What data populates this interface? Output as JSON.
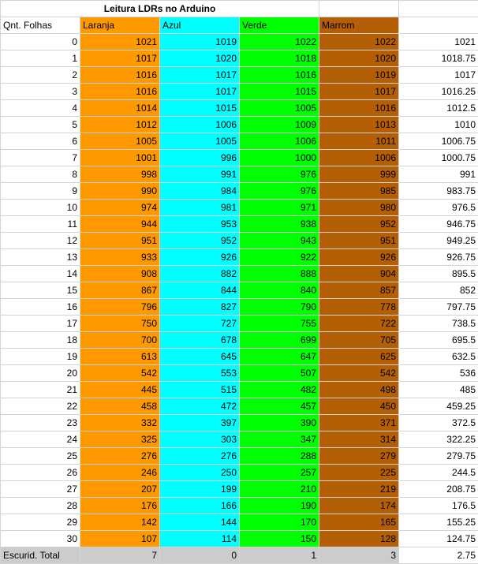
{
  "title": "Leitura LDRs no Arduino",
  "headers": {
    "rowlabel": "Qnt. Folhas",
    "laranja": "Laranja",
    "azul": "Azul",
    "verde": "Verde",
    "marrom": "Marrom"
  },
  "colors": {
    "laranja": "#ff9900",
    "azul": "#00ffff",
    "verde": "#00ff00",
    "marrom": "#b45f06",
    "total_row": "#cccccc"
  },
  "rows": [
    {
      "n": "0",
      "laranja": "1021",
      "azul": "1019",
      "verde": "1022",
      "marrom": "1022",
      "media": "1021"
    },
    {
      "n": "1",
      "laranja": "1017",
      "azul": "1020",
      "verde": "1018",
      "marrom": "1020",
      "media": "1018.75"
    },
    {
      "n": "2",
      "laranja": "1016",
      "azul": "1017",
      "verde": "1016",
      "marrom": "1019",
      "media": "1017"
    },
    {
      "n": "3",
      "laranja": "1016",
      "azul": "1017",
      "verde": "1015",
      "marrom": "1017",
      "media": "1016.25"
    },
    {
      "n": "4",
      "laranja": "1014",
      "azul": "1015",
      "verde": "1005",
      "marrom": "1016",
      "media": "1012.5"
    },
    {
      "n": "5",
      "laranja": "1012",
      "azul": "1006",
      "verde": "1009",
      "marrom": "1013",
      "media": "1010"
    },
    {
      "n": "6",
      "laranja": "1005",
      "azul": "1005",
      "verde": "1006",
      "marrom": "1011",
      "media": "1006.75"
    },
    {
      "n": "7",
      "laranja": "1001",
      "azul": "996",
      "verde": "1000",
      "marrom": "1006",
      "media": "1000.75"
    },
    {
      "n": "8",
      "laranja": "998",
      "azul": "991",
      "verde": "976",
      "marrom": "999",
      "media": "991"
    },
    {
      "n": "9",
      "laranja": "990",
      "azul": "984",
      "verde": "976",
      "marrom": "985",
      "media": "983.75"
    },
    {
      "n": "10",
      "laranja": "974",
      "azul": "981",
      "verde": "971",
      "marrom": "980",
      "media": "976.5"
    },
    {
      "n": "11",
      "laranja": "944",
      "azul": "953",
      "verde": "938",
      "marrom": "952",
      "media": "946.75"
    },
    {
      "n": "12",
      "laranja": "951",
      "azul": "952",
      "verde": "943",
      "marrom": "951",
      "media": "949.25"
    },
    {
      "n": "13",
      "laranja": "933",
      "azul": "926",
      "verde": "922",
      "marrom": "926",
      "media": "926.75"
    },
    {
      "n": "14",
      "laranja": "908",
      "azul": "882",
      "verde": "888",
      "marrom": "904",
      "media": "895.5"
    },
    {
      "n": "15",
      "laranja": "867",
      "azul": "844",
      "verde": "840",
      "marrom": "857",
      "media": "852"
    },
    {
      "n": "16",
      "laranja": "796",
      "azul": "827",
      "verde": "790",
      "marrom": "778",
      "media": "797.75"
    },
    {
      "n": "17",
      "laranja": "750",
      "azul": "727",
      "verde": "755",
      "marrom": "722",
      "media": "738.5"
    },
    {
      "n": "18",
      "laranja": "700",
      "azul": "678",
      "verde": "699",
      "marrom": "705",
      "media": "695.5"
    },
    {
      "n": "19",
      "laranja": "613",
      "azul": "645",
      "verde": "647",
      "marrom": "625",
      "media": "632.5"
    },
    {
      "n": "20",
      "laranja": "542",
      "azul": "553",
      "verde": "507",
      "marrom": "542",
      "media": "536"
    },
    {
      "n": "21",
      "laranja": "445",
      "azul": "515",
      "verde": "482",
      "marrom": "498",
      "media": "485"
    },
    {
      "n": "22",
      "laranja": "458",
      "azul": "472",
      "verde": "457",
      "marrom": "450",
      "media": "459.25"
    },
    {
      "n": "23",
      "laranja": "332",
      "azul": "397",
      "verde": "390",
      "marrom": "371",
      "media": "372.5"
    },
    {
      "n": "24",
      "laranja": "325",
      "azul": "303",
      "verde": "347",
      "marrom": "314",
      "media": "322.25"
    },
    {
      "n": "25",
      "laranja": "276",
      "azul": "276",
      "verde": "288",
      "marrom": "279",
      "media": "279.75"
    },
    {
      "n": "26",
      "laranja": "246",
      "azul": "250",
      "verde": "257",
      "marrom": "225",
      "media": "244.5"
    },
    {
      "n": "27",
      "laranja": "207",
      "azul": "199",
      "verde": "210",
      "marrom": "219",
      "media": "208.75"
    },
    {
      "n": "28",
      "laranja": "176",
      "azul": "166",
      "verde": "190",
      "marrom": "174",
      "media": "176.5"
    },
    {
      "n": "29",
      "laranja": "142",
      "azul": "144",
      "verde": "170",
      "marrom": "165",
      "media": "155.25"
    },
    {
      "n": "30",
      "laranja": "107",
      "azul": "114",
      "verde": "150",
      "marrom": "128",
      "media": "124.75"
    }
  ],
  "total": {
    "label": "Escurid. Total",
    "laranja": "7",
    "azul": "0",
    "verde": "1",
    "marrom": "3",
    "media": "2.75"
  }
}
